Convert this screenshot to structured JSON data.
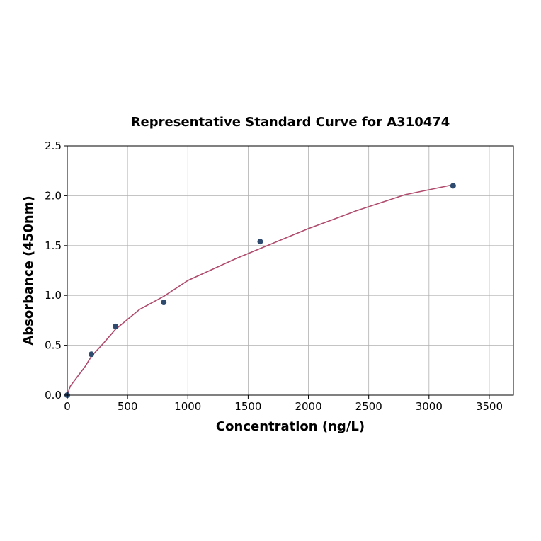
{
  "chart_data": {
    "type": "scatter",
    "title": "Representative Standard Curve for A310474",
    "xlabel": "Concentration (ng/L)",
    "ylabel": "Absorbance (450nm)",
    "xlim": [
      0,
      3700
    ],
    "ylim": [
      0,
      2.5
    ],
    "xticks": [
      0,
      500,
      1000,
      1500,
      2000,
      2500,
      3000,
      3500
    ],
    "yticks": [
      0.0,
      0.5,
      1.0,
      1.5,
      2.0,
      2.5
    ],
    "xtick_labels": [
      "0",
      "500",
      "1000",
      "1500",
      "2000",
      "2500",
      "3000",
      "3500"
    ],
    "ytick_labels": [
      "0.0",
      "0.5",
      "1.0",
      "1.5",
      "2.0",
      "2.5"
    ],
    "grid": true,
    "points": {
      "x": [
        0,
        200,
        400,
        800,
        1600,
        3200
      ],
      "y": [
        0.0,
        0.41,
        0.69,
        0.93,
        1.54,
        2.1
      ]
    },
    "fit_curve": {
      "x": [
        0,
        25,
        50,
        100,
        150,
        200,
        300,
        400,
        600,
        800,
        1000,
        1200,
        1400,
        1600,
        1800,
        2000,
        2200,
        2400,
        2600,
        2800,
        3000,
        3200
      ],
      "y": [
        0.0,
        0.09,
        0.13,
        0.21,
        0.29,
        0.39,
        0.52,
        0.66,
        0.86,
        0.99,
        1.15,
        1.26,
        1.37,
        1.47,
        1.57,
        1.67,
        1.76,
        1.85,
        1.93,
        2.01,
        2.06,
        2.11
      ]
    },
    "colors": {
      "points": "#2e4a6e",
      "curve": "#b04a6c",
      "grid": "#b0b0b0",
      "axes": "#000000"
    }
  }
}
